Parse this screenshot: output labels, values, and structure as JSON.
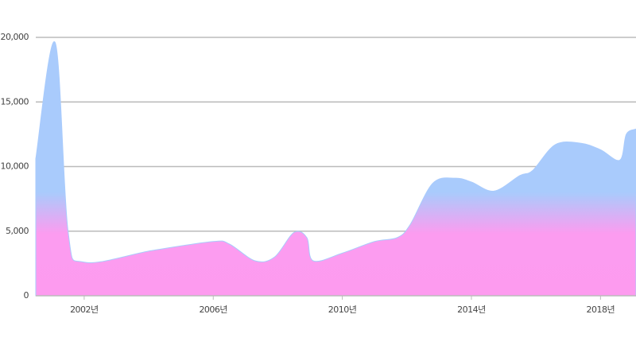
{
  "chart_data": {
    "type": "area",
    "x": [
      2000.5,
      2001.1,
      2001.5,
      2002,
      2004.1,
      2006,
      2006.5,
      2007.3,
      2007.9,
      2008.5,
      2008.9,
      2009.1,
      2010,
      2011,
      2011.7,
      2012.1,
      2012.8,
      2013.5,
      2014,
      2014.7,
      2015.5,
      2015.9,
      2016.6,
      2017.4,
      2018,
      2018.6,
      2018.8,
      2019.1
    ],
    "series": [
      {
        "color": "#a9cbfc",
        "values": [
          10600,
          19600,
          5000,
          2600,
          3500,
          4200,
          4000,
          2700,
          3000,
          4900,
          4500,
          2700,
          3300,
          4200,
          4500,
          5500,
          8700,
          9100,
          8800,
          8100,
          9300,
          9700,
          11700,
          11800,
          11300,
          10500,
          12500,
          12900
        ]
      }
    ],
    "xlim": [
      2000.5,
      2019.1
    ],
    "xticks": [
      {
        "value": 2002,
        "label": "2002년"
      },
      {
        "value": 2006,
        "label": "2006년"
      },
      {
        "value": 2010,
        "label": "2010년"
      },
      {
        "value": 2014,
        "label": "2014년"
      },
      {
        "value": 2018,
        "label": "2018년"
      }
    ],
    "ylim": [
      0,
      20000
    ],
    "yticks": [
      0,
      {
        "value": 5000,
        "label": "5,000"
      },
      {
        "value": 10000,
        "label": "10,000"
      },
      {
        "value": 15000,
        "label": "15,000"
      },
      {
        "value": 20000,
        "label": "20,000"
      }
    ],
    "grid": true
  }
}
